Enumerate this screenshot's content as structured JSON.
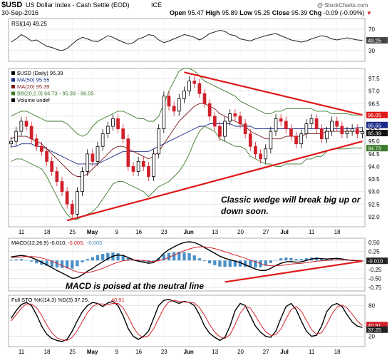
{
  "header": {
    "symbol": "$USD",
    "name": "US Dollar Index - Cash Settle (EOD)",
    "exchange": "ICE",
    "date": "30-Sep-2016",
    "open_label": "Open",
    "open": "95.47",
    "high_label": "High",
    "high": "95.89",
    "low_label": "Low",
    "low": "95.25",
    "close_label": "Close",
    "close": "95.39",
    "chg_label": "Chg",
    "chg": "-0.09 (-0.09%)",
    "watermark": "@ StockCharts.com"
  },
  "colors": {
    "up": "#000000",
    "down": "#d0202a",
    "ma50": "#1a2a8a",
    "ma20": "#7a1a1a",
    "bb": "#3a7a2a",
    "trend": "#e01818",
    "macd_hist": "#4a90c8",
    "annotation": "#ffffff"
  },
  "chart_data": [
    {
      "type": "line",
      "panel": "rsi",
      "legend": "RSI(14) 49.25",
      "yticks": [
        "70",
        "50",
        "30"
      ],
      "current_label": "49.25",
      "ylim": [
        10,
        90
      ],
      "values": [
        46,
        52,
        60,
        55,
        48,
        50,
        44,
        38,
        36,
        32,
        30,
        34,
        42,
        50,
        55,
        52,
        48,
        47,
        52,
        58,
        55,
        50,
        46,
        42,
        45,
        52,
        55,
        60,
        58,
        50,
        45,
        48,
        52,
        56,
        60,
        58,
        55,
        50,
        55,
        62,
        65,
        68,
        66,
        60,
        58,
        52,
        50,
        48,
        52,
        55,
        58,
        60,
        62,
        58,
        54,
        50,
        48,
        46,
        48,
        52,
        55,
        58,
        56,
        52,
        50,
        52,
        54,
        52,
        50,
        49.25
      ]
    },
    {
      "type": "candlestick",
      "panel": "price",
      "legend": [
        "$USD (Daily) 95.39",
        "MA(50) 95.55",
        "MA(20) 95.39",
        "BB(20,2.0) 94.73 - 95.39 - 96.05",
        "Volume undef"
      ],
      "yticks": [
        "97.5",
        "97.0",
        "96.5",
        "96.0",
        "95.5",
        "95.0",
        "94.5",
        "94.0",
        "93.5",
        "93.0",
        "92.5",
        "92.0"
      ],
      "ylim": [
        91.6,
        97.9
      ],
      "current_labels": [
        "96.05",
        "95.55",
        "95.39",
        "94.73"
      ],
      "closes": [
        95.0,
        95.4,
        95.8,
        95.6,
        95.1,
        94.8,
        94.6,
        94.2,
        93.8,
        93.4,
        93.0,
        92.5,
        92.1,
        93.0,
        93.8,
        94.5,
        94.2,
        94.8,
        95.3,
        95.6,
        95.9,
        95.5,
        95.1,
        94.0,
        93.8,
        94.2,
        94.0,
        93.6,
        94.5,
        95.5,
        96.8,
        96.4,
        96.2,
        96.7,
        97.0,
        97.4,
        97.3,
        96.9,
        96.5,
        96.0,
        95.6,
        95.2,
        95.8,
        96.1,
        96.0,
        95.7,
        95.3,
        94.8,
        94.5,
        94.3,
        94.7,
        95.4,
        95.9,
        95.8,
        95.5,
        95.2,
        94.9,
        95.3,
        95.7,
        95.9,
        95.5,
        95.1,
        95.4,
        95.8,
        95.6,
        95.3,
        95.4,
        95.5,
        95.3,
        95.39
      ],
      "ma50": [
        94.8,
        94.8,
        94.9,
        94.9,
        94.9,
        94.8,
        94.8,
        94.7,
        94.6,
        94.5,
        94.4,
        94.3,
        94.2,
        94.1,
        94.1,
        94.1,
        94.1,
        94.1,
        94.2,
        94.3,
        94.4,
        94.5,
        94.6,
        94.6,
        94.6,
        94.6,
        94.6,
        94.6,
        94.7,
        94.8,
        94.9,
        95.0,
        95.1,
        95.2,
        95.3,
        95.4,
        95.5,
        95.6,
        95.6,
        95.7,
        95.7,
        95.7,
        95.7,
        95.7,
        95.6,
        95.6,
        95.6,
        95.6,
        95.5,
        95.5,
        95.5,
        95.5,
        95.5,
        95.5,
        95.5,
        95.5,
        95.5,
        95.5,
        95.5,
        95.5,
        95.5,
        95.5,
        95.5,
        95.5,
        95.5,
        95.5,
        95.5,
        95.5,
        95.55,
        95.55
      ],
      "ma20": [
        95.1,
        95.2,
        95.2,
        95.2,
        95.1,
        95.0,
        94.9,
        94.7,
        94.5,
        94.3,
        94.1,
        93.9,
        93.7,
        93.6,
        93.6,
        93.7,
        93.9,
        94.1,
        94.3,
        94.5,
        94.7,
        94.8,
        94.8,
        94.7,
        94.6,
        94.5,
        94.4,
        94.3,
        94.4,
        94.6,
        94.9,
        95.2,
        95.5,
        95.8,
        96.0,
        96.2,
        96.4,
        96.5,
        96.5,
        96.4,
        96.3,
        96.1,
        96.0,
        95.9,
        95.8,
        95.7,
        95.6,
        95.4,
        95.3,
        95.2,
        95.1,
        95.1,
        95.1,
        95.1,
        95.2,
        95.2,
        95.2,
        95.2,
        95.3,
        95.3,
        95.3,
        95.3,
        95.4,
        95.4,
        95.4,
        95.4,
        95.4,
        95.4,
        95.4,
        95.39
      ],
      "bb_upper": [
        96.0,
        96.1,
        96.2,
        96.2,
        96.1,
        96.0,
        95.9,
        95.8,
        95.8,
        95.8,
        95.8,
        95.7,
        95.5,
        95.3,
        95.2,
        95.3,
        95.6,
        95.8,
        95.9,
        96.0,
        96.1,
        96.2,
        96.2,
        96.1,
        96.0,
        95.9,
        95.9,
        95.8,
        95.8,
        96.0,
        96.5,
        97.0,
        97.4,
        97.8,
        97.9,
        97.9,
        97.8,
        97.6,
        97.4,
        97.3,
        97.2,
        97.1,
        97.0,
        96.9,
        96.8,
        96.6,
        96.5,
        96.4,
        96.3,
        96.2,
        96.1,
        96.1,
        96.2,
        96.2,
        96.3,
        96.3,
        96.3,
        96.3,
        96.3,
        96.3,
        96.2,
        96.2,
        96.2,
        96.1,
        96.1,
        96.1,
        96.1,
        96.05,
        96.05,
        96.05
      ],
      "bb_lower": [
        94.2,
        94.3,
        94.3,
        94.2,
        94.1,
        94.0,
        93.9,
        93.6,
        93.2,
        92.8,
        92.4,
        92.1,
        91.9,
        91.9,
        92.0,
        92.1,
        92.2,
        92.4,
        92.7,
        93.0,
        93.3,
        93.4,
        93.4,
        93.3,
        93.2,
        93.1,
        93.0,
        92.8,
        93.0,
        93.2,
        93.3,
        93.4,
        93.6,
        93.8,
        94.1,
        94.5,
        95.0,
        95.4,
        95.6,
        95.5,
        95.4,
        95.1,
        95.0,
        94.9,
        94.8,
        94.8,
        94.7,
        94.4,
        94.3,
        94.2,
        94.1,
        94.1,
        94.0,
        94.0,
        94.1,
        94.1,
        94.1,
        94.1,
        94.3,
        94.3,
        94.4,
        94.4,
        94.6,
        94.7,
        94.7,
        94.7,
        94.7,
        94.73,
        94.73,
        94.73
      ],
      "wedge_upper": [
        [
          34,
          97.75
        ],
        [
          69,
          96.05
        ]
      ],
      "wedge_lower": [
        [
          11,
          91.85
        ],
        [
          69,
          95.0
        ]
      ],
      "annotation": "Classic wedge will break big up or down soon."
    },
    {
      "type": "line",
      "panel": "macd",
      "legend": [
        "MACD(12,26,9)",
        "-0.010,",
        "-0.005,",
        "-0.005"
      ],
      "yticks": [
        "0.50",
        "0.25",
        "0.00",
        "-0.25",
        "-0.50",
        "-0.75"
      ],
      "ylim": [
        -0.85,
        0.62
      ],
      "current_label": "-0.010",
      "macd": [
        0.1,
        0.12,
        0.14,
        0.12,
        0.08,
        0.02,
        -0.05,
        -0.12,
        -0.2,
        -0.28,
        -0.35,
        -0.42,
        -0.5,
        -0.48,
        -0.4,
        -0.3,
        -0.22,
        -0.12,
        -0.04,
        0.05,
        0.12,
        0.15,
        0.14,
        0.08,
        0.02,
        -0.02,
        -0.05,
        -0.08,
        -0.06,
        0.05,
        0.2,
        0.3,
        0.38,
        0.45,
        0.5,
        0.52,
        0.5,
        0.44,
        0.36,
        0.28,
        0.2,
        0.12,
        0.06,
        0.02,
        -0.02,
        -0.06,
        -0.12,
        -0.18,
        -0.24,
        -0.28,
        -0.28,
        -0.22,
        -0.14,
        -0.08,
        -0.04,
        -0.03,
        -0.05,
        -0.04,
        0.0,
        0.04,
        0.06,
        0.05,
        0.04,
        0.05,
        0.06,
        0.04,
        0.02,
        0.0,
        -0.005,
        -0.01
      ],
      "signal": [
        0.08,
        0.09,
        0.1,
        0.11,
        0.11,
        0.1,
        0.07,
        0.03,
        -0.02,
        -0.08,
        -0.14,
        -0.2,
        -0.27,
        -0.32,
        -0.35,
        -0.34,
        -0.31,
        -0.27,
        -0.22,
        -0.16,
        -0.1,
        -0.05,
        -0.01,
        0.01,
        0.02,
        0.01,
        0.0,
        -0.02,
        -0.03,
        -0.01,
        0.03,
        0.09,
        0.15,
        0.21,
        0.27,
        0.32,
        0.36,
        0.38,
        0.38,
        0.36,
        0.33,
        0.29,
        0.24,
        0.2,
        0.15,
        0.11,
        0.06,
        0.01,
        -0.04,
        -0.09,
        -0.13,
        -0.15,
        -0.15,
        -0.14,
        -0.12,
        -0.1,
        -0.09,
        -0.08,
        -0.06,
        -0.04,
        -0.02,
        -0.01,
        0.0,
        0.01,
        0.02,
        0.02,
        0.02,
        0.01,
        0.0,
        -0.005
      ],
      "trendline": [
        [
          42,
          -0.6
        ],
        [
          69,
          -0.02
        ]
      ],
      "annotation": "MACD is poised at the neutral line"
    },
    {
      "type": "line",
      "panel": "sto",
      "legend": [
        "Full STO %K(14,3) %D(3) 37.25,",
        "40.91"
      ],
      "yticks": [
        "80",
        "20"
      ],
      "current_labels": [
        "40.91",
        "37.25"
      ],
      "ylim": [
        0,
        100
      ],
      "k": [
        55,
        70,
        82,
        86,
        80,
        62,
        40,
        24,
        16,
        12,
        10,
        14,
        30,
        50,
        68,
        80,
        86,
        84,
        78,
        85,
        88,
        80,
        60,
        35,
        20,
        14,
        20,
        30,
        55,
        80,
        90,
        92,
        88,
        84,
        88,
        86,
        80,
        62,
        40,
        26,
        18,
        12,
        18,
        40,
        70,
        84,
        80,
        60,
        40,
        28,
        20,
        18,
        30,
        55,
        78,
        84,
        72,
        50,
        30,
        20,
        22,
        40,
        68,
        80,
        84,
        78,
        62,
        48,
        40,
        37.25
      ],
      "d": [
        50,
        62,
        75,
        83,
        83,
        76,
        61,
        42,
        27,
        17,
        13,
        12,
        18,
        31,
        49,
        66,
        78,
        83,
        83,
        82,
        84,
        84,
        76,
        58,
        38,
        23,
        18,
        21,
        35,
        55,
        75,
        87,
        90,
        88,
        87,
        86,
        85,
        76,
        61,
        43,
        28,
        19,
        16,
        23,
        43,
        65,
        78,
        75,
        60,
        43,
        29,
        22,
        23,
        34,
        54,
        72,
        78,
        69,
        51,
        33,
        24,
        27,
        43,
        63,
        77,
        81,
        75,
        63,
        50,
        40.91
      ]
    }
  ],
  "months": [
    {
      "label": "11",
      "bar": 2
    },
    {
      "label": "18",
      "bar": 7
    },
    {
      "label": "25",
      "bar": 12
    },
    {
      "label": "May",
      "bar": 16
    },
    {
      "label": "9",
      "bar": 21
    },
    {
      "label": "16",
      "bar": 25
    },
    {
      "label": "23",
      "bar": 30
    },
    {
      "label": "Jun",
      "bar": 35
    },
    {
      "label": "13",
      "bar": 40
    },
    {
      "label": "20",
      "bar": 45
    },
    {
      "label": "27",
      "bar": 50
    },
    {
      "label": "Jul",
      "bar": 54
    },
    {
      "label": "11",
      "bar": 59
    },
    {
      "label": "18",
      "bar": 64
    }
  ]
}
